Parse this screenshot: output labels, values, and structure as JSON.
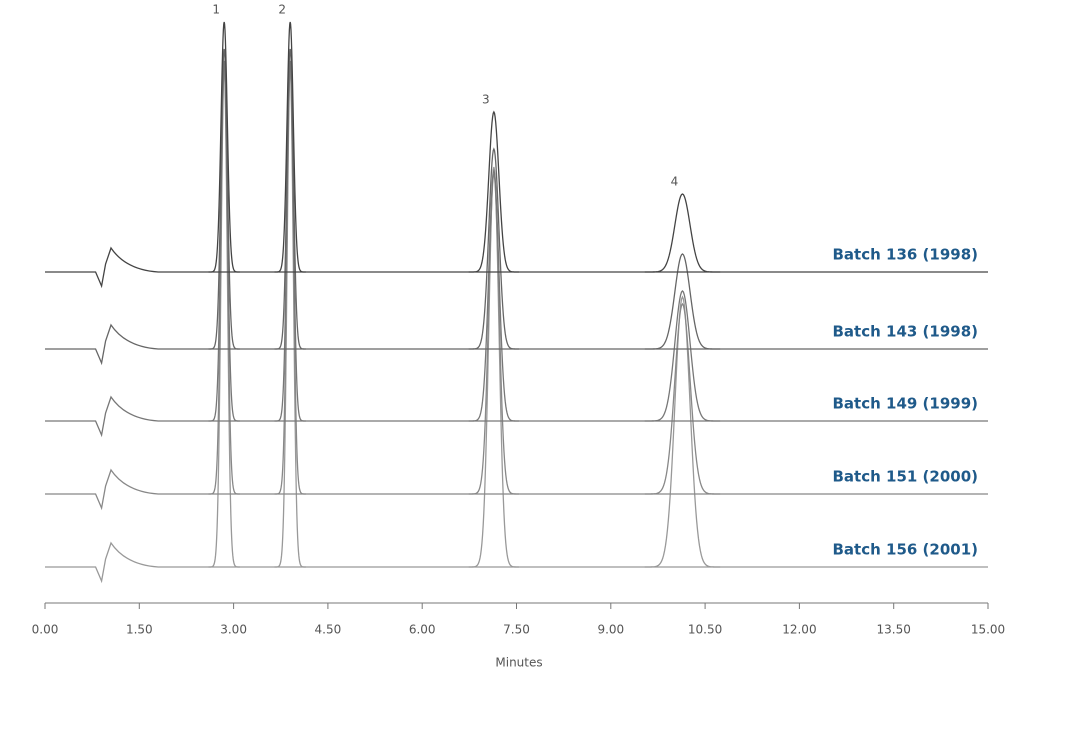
{
  "chart_data": {
    "type": "chromatogram",
    "xlabel": "Minutes",
    "xlim": [
      0,
      15
    ],
    "xticks": [
      {
        "value": 0,
        "label": "0.00"
      },
      {
        "value": 1.5,
        "label": "1.50"
      },
      {
        "value": 3,
        "label": "3.00"
      },
      {
        "value": 4.5,
        "label": "4.50"
      },
      {
        "value": 6,
        "label": "6.00"
      },
      {
        "value": 7.5,
        "label": "7.50"
      },
      {
        "value": 9,
        "label": "9.00"
      },
      {
        "value": 10.5,
        "label": "10.50"
      },
      {
        "value": 12,
        "label": "12.00"
      },
      {
        "value": 13.5,
        "label": "13.50"
      },
      {
        "value": 15,
        "label": "15.00"
      }
    ],
    "peak_labels": [
      "1",
      "2",
      "3",
      "4"
    ],
    "peak_times": [
      2.85,
      3.9,
      7.14,
      10.14
    ],
    "label_color": "#1f5a8a",
    "series": [
      {
        "name": "Batch 136 (1998)",
        "color": "#444444",
        "values": [
          250,
          250,
          160,
          78
        ]
      },
      {
        "name": "Batch 143 (1998)",
        "color": "#666666",
        "values": [
          300,
          300,
          200,
          95
        ]
      },
      {
        "name": "Batch 149 (1999)",
        "color": "#777777",
        "values": [
          360,
          360,
          250,
          130
        ]
      },
      {
        "name": "Batch 151 (2000)",
        "color": "#888888",
        "values": [
          430,
          430,
          320,
          190
        ]
      },
      {
        "name": "Batch 156 (2001)",
        "color": "#999999",
        "values": [
          500,
          500,
          400,
          270
        ]
      }
    ]
  }
}
